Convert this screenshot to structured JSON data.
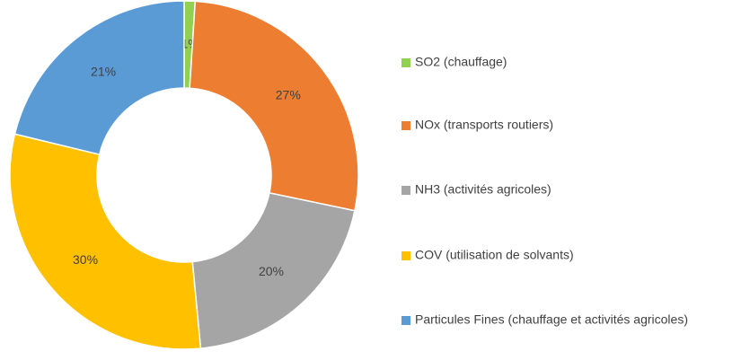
{
  "chart_data": {
    "type": "donut",
    "categories": [
      "SO2 (chauffage)",
      "NOx (transports routiers)",
      "NH3 (activités agricoles)",
      "COV (utilisation de solvants)",
      "Particules Fines (chauffage et activités agricoles)"
    ],
    "values": [
      1,
      27,
      20,
      30,
      21
    ],
    "value_labels": [
      "1%",
      "27%",
      "20%",
      "30%",
      "21%"
    ],
    "colors": [
      "#92d050",
      "#ed7d31",
      "#a5a5a5",
      "#ffc000",
      "#5b9bd5"
    ],
    "legend": "right"
  }
}
